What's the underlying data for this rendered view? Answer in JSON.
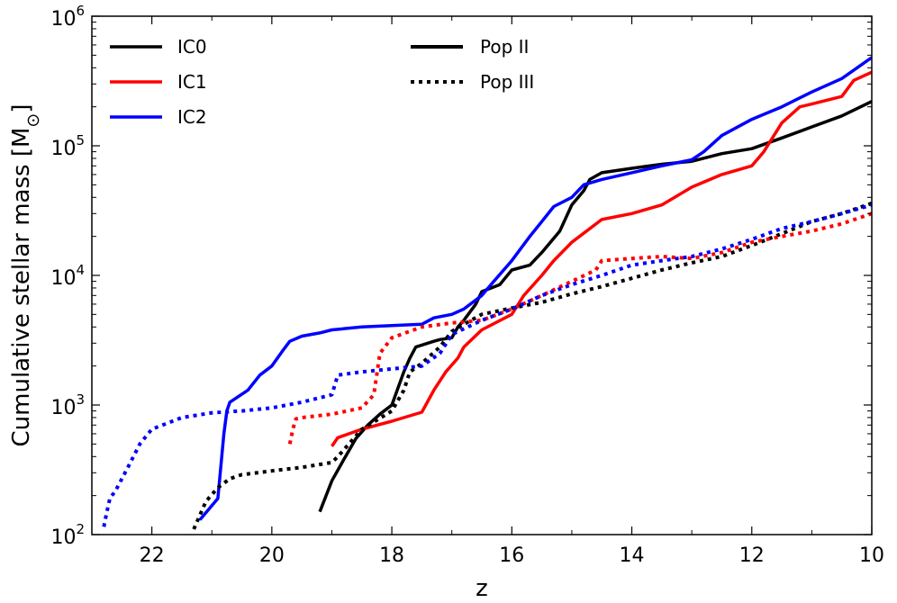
{
  "chart_data": {
    "type": "line",
    "xlabel": "z",
    "ylabel": "Cumulative stellar mass [M",
    "ylabel_sub": "⊙",
    "ylabel_suffix": "]",
    "xlim": [
      23,
      10
    ],
    "ylim": [
      100,
      1000000
    ],
    "yscale": "log",
    "xticks": [
      22,
      20,
      18,
      16,
      14,
      12,
      10
    ],
    "ytick_exponents": [
      2,
      3,
      4,
      5,
      6
    ],
    "ytick_base": "10",
    "legend_ic": [
      {
        "label": "IC0",
        "color": "#000000"
      },
      {
        "label": "IC1",
        "color": "#ff0000"
      },
      {
        "label": "IC2",
        "color": "#0000ff"
      }
    ],
    "legend_pop": [
      {
        "label": "Pop II",
        "style": "solid"
      },
      {
        "label": "Pop III",
        "style": "dotted"
      }
    ],
    "series": [
      {
        "name": "IC0 Pop II",
        "color": "#000000",
        "style": "solid",
        "x": [
          19.2,
          19.0,
          18.8,
          18.6,
          18.4,
          18.2,
          18.0,
          17.8,
          17.7,
          17.6,
          17.3,
          17.2,
          17.0,
          16.9,
          16.8,
          16.6,
          16.5,
          16.2,
          16.0,
          15.7,
          15.5,
          15.2,
          15.0,
          14.8,
          14.7,
          14.5,
          14.0,
          13.5,
          13.0,
          12.5,
          12.0,
          11.5,
          11.0,
          10.5,
          10.0
        ],
        "y": [
          150,
          260,
          380,
          550,
          700,
          850,
          1000,
          1800,
          2300,
          2800,
          3100,
          3200,
          3300,
          4000,
          4500,
          6000,
          7500,
          8500,
          11000,
          12000,
          15000,
          22000,
          35000,
          45000,
          55000,
          62000,
          67000,
          72000,
          76000,
          87000,
          95000,
          115000,
          140000,
          170000,
          220000
        ]
      },
      {
        "name": "IC1 Pop II",
        "color": "#ff0000",
        "style": "solid",
        "x": [
          19.0,
          18.9,
          18.5,
          18.0,
          17.5,
          17.3,
          17.1,
          16.9,
          16.8,
          16.5,
          16.0,
          15.8,
          15.5,
          15.3,
          15.0,
          14.5,
          14.0,
          13.5,
          13.0,
          12.5,
          12.0,
          11.8,
          11.5,
          11.2,
          11.0,
          10.5,
          10.3,
          10.0
        ],
        "y": [
          480,
          560,
          650,
          750,
          880,
          1300,
          1800,
          2300,
          2800,
          3800,
          5000,
          7000,
          10000,
          13000,
          18000,
          27000,
          30000,
          35000,
          48000,
          60000,
          70000,
          90000,
          150000,
          200000,
          210000,
          240000,
          320000,
          370000
        ]
      },
      {
        "name": "IC2 Pop II",
        "color": "#0000ff",
        "style": "solid",
        "x": [
          21.2,
          20.9,
          20.8,
          20.75,
          20.7,
          20.4,
          20.2,
          20.0,
          19.8,
          19.7,
          19.5,
          19.2,
          19.0,
          18.5,
          18.0,
          17.5,
          17.3,
          17.0,
          16.8,
          16.5,
          16.3,
          16.0,
          15.7,
          15.5,
          15.3,
          15.0,
          14.8,
          14.5,
          14.0,
          13.5,
          13.0,
          12.8,
          12.5,
          12.0,
          11.5,
          11.0,
          10.5,
          10.0
        ],
        "y": [
          130,
          190,
          600,
          900,
          1050,
          1300,
          1700,
          2000,
          2700,
          3100,
          3400,
          3600,
          3800,
          4000,
          4100,
          4200,
          4700,
          5000,
          5500,
          7000,
          9000,
          13000,
          20000,
          26000,
          34000,
          40000,
          50000,
          55000,
          62000,
          70000,
          78000,
          90000,
          120000,
          160000,
          200000,
          260000,
          330000,
          480000
        ]
      },
      {
        "name": "IC0 Pop III",
        "color": "#000000",
        "style": "dotted",
        "x": [
          21.3,
          21.1,
          20.9,
          20.7,
          20.5,
          20.0,
          19.5,
          19.0,
          18.9,
          18.5,
          18.0,
          17.8,
          17.7,
          17.5,
          17.2,
          17.0,
          16.8,
          16.5,
          16.0,
          15.5,
          15.0,
          14.5,
          14.0,
          13.5,
          13.0,
          12.5,
          12.0,
          11.5,
          11.0,
          10.5,
          10.0
        ],
        "y": [
          110,
          180,
          230,
          270,
          290,
          310,
          330,
          360,
          400,
          650,
          900,
          1300,
          1800,
          2100,
          2800,
          3700,
          4200,
          5000,
          5600,
          6200,
          7200,
          8200,
          9500,
          11000,
          12500,
          14000,
          17000,
          21000,
          26000,
          30000,
          36000
        ]
      },
      {
        "name": "IC1 Pop III",
        "color": "#ff0000",
        "style": "dotted",
        "x": [
          19.7,
          19.65,
          19.6,
          19.5,
          19.0,
          18.5,
          18.3,
          18.2,
          18.0,
          17.5,
          17.0,
          16.5,
          16.0,
          15.5,
          15.0,
          14.6,
          14.5,
          14.0,
          13.5,
          13.0,
          12.5,
          12.0,
          11.5,
          11.0,
          10.5,
          10.0
        ],
        "y": [
          500,
          650,
          780,
          800,
          850,
          950,
          1200,
          2500,
          3300,
          4000,
          4300,
          4500,
          5500,
          7000,
          9000,
          11000,
          13000,
          13500,
          14000,
          13500,
          15000,
          18000,
          20000,
          22000,
          25000,
          30000
        ]
      },
      {
        "name": "IC2 Pop III",
        "color": "#0000ff",
        "style": "dotted",
        "x": [
          22.8,
          22.75,
          22.7,
          22.6,
          22.4,
          22.2,
          22.0,
          21.5,
          21.0,
          20.5,
          20.0,
          19.5,
          19.0,
          18.9,
          18.5,
          18.0,
          17.5,
          17.2,
          17.0,
          16.5,
          16.0,
          15.5,
          15.0,
          14.5,
          14.0,
          13.5,
          13.0,
          12.5,
          12.0,
          11.5,
          11.0,
          10.5,
          10.0
        ],
        "y": [
          115,
          150,
          190,
          220,
          330,
          500,
          650,
          800,
          870,
          900,
          950,
          1050,
          1200,
          1700,
          1800,
          1900,
          2000,
          2500,
          3500,
          4500,
          5500,
          7000,
          8500,
          10000,
          12000,
          13000,
          14000,
          16000,
          19000,
          23000,
          26000,
          30000,
          35000
        ]
      }
    ]
  }
}
